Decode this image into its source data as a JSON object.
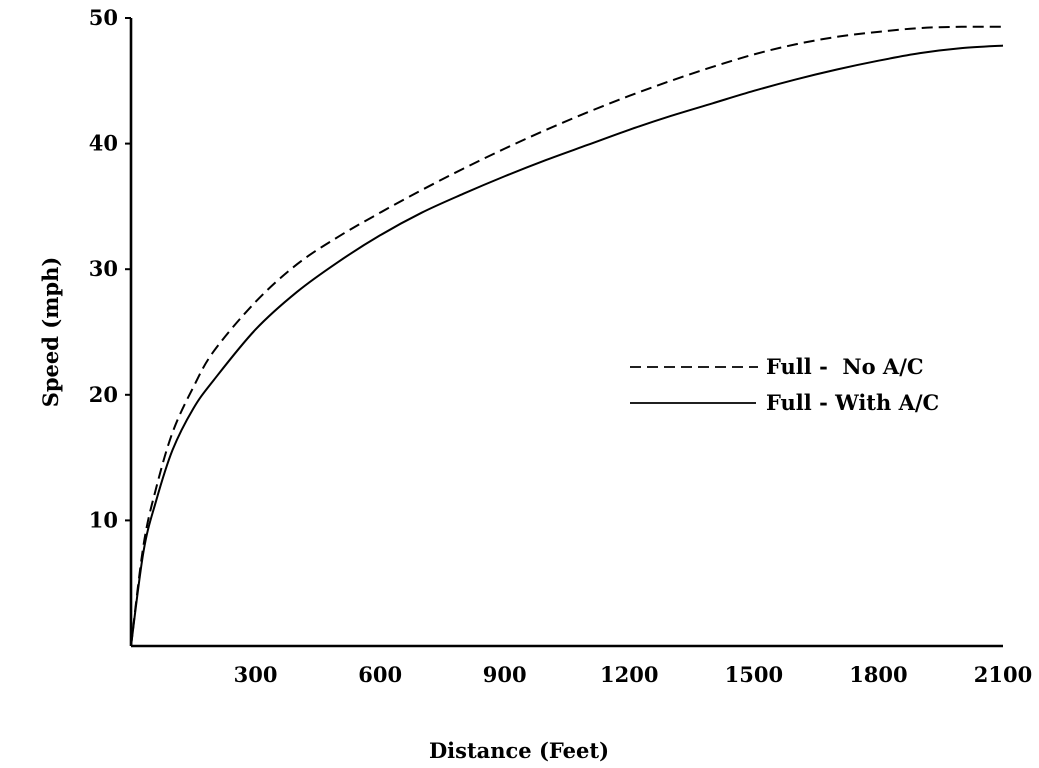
{
  "chart_data": {
    "type": "line",
    "title": "",
    "xlabel": "Distance (Feet)",
    "ylabel": "Speed (mph)",
    "xlim": [
      0,
      2100
    ],
    "ylim": [
      0,
      50
    ],
    "x_ticks": [
      300,
      600,
      900,
      1200,
      1500,
      1800,
      2100
    ],
    "x_tick_labels": [
      "300",
      "600",
      "900",
      "1200",
      "1500",
      "1800",
      "2100"
    ],
    "y_ticks": [
      10,
      20,
      30,
      40,
      50
    ],
    "y_tick_labels": [
      "10",
      "20",
      "30",
      "40",
      "50"
    ],
    "grid": false,
    "legend_position": "center-right",
    "series": [
      {
        "name": "Full -  No A/C",
        "line_style": "dashed",
        "color": "#000000",
        "x": [
          0,
          30,
          60,
          100,
          150,
          200,
          300,
          400,
          500,
          600,
          700,
          800,
          900,
          1000,
          1100,
          1200,
          1300,
          1400,
          1500,
          1600,
          1700,
          1800,
          1900,
          2000,
          2100
        ],
        "y": [
          0,
          8,
          12.5,
          17,
          20.6,
          23.5,
          27.4,
          30.4,
          32.6,
          34.5,
          36.3,
          38,
          39.6,
          41.1,
          42.5,
          43.8,
          45,
          46.1,
          47.1,
          47.9,
          48.5,
          48.9,
          49.2,
          49.3,
          49.3
        ]
      },
      {
        "name": "Full - With A/C",
        "line_style": "solid",
        "color": "#000000",
        "x": [
          0,
          30,
          60,
          100,
          150,
          200,
          300,
          400,
          500,
          600,
          700,
          800,
          900,
          1000,
          1100,
          1200,
          1300,
          1400,
          1500,
          1600,
          1700,
          1800,
          1900,
          2000,
          2100
        ],
        "y": [
          0,
          7.5,
          11.5,
          15.6,
          18.9,
          21.2,
          25.2,
          28.2,
          30.6,
          32.7,
          34.5,
          36,
          37.4,
          38.7,
          39.9,
          41.1,
          42.2,
          43.2,
          44.2,
          45.1,
          45.9,
          46.6,
          47.2,
          47.6,
          47.8
        ]
      }
    ]
  }
}
